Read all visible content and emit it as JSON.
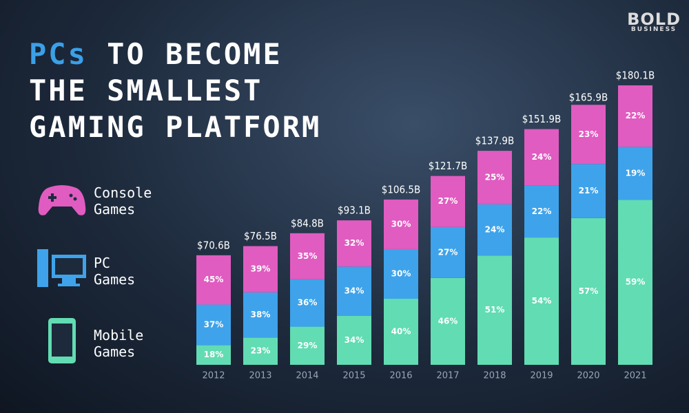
{
  "chart_data": {
    "type": "bar",
    "title_highlight": "PCs",
    "title_lines": [
      "TO BECOME",
      "THE SMALLEST",
      "GAMING PLATFORM"
    ],
    "logo": "BOLD",
    "logo_sub": "BUSINESS",
    "categories": [
      "2012",
      "2013",
      "2014",
      "2015",
      "2016",
      "2017",
      "2018",
      "2019",
      "2020",
      "2021"
    ],
    "totals": [
      70.6,
      76.5,
      84.8,
      93.1,
      106.5,
      121.7,
      137.9,
      151.9,
      165.9,
      180.1
    ],
    "total_labels": [
      "$70.6B",
      "$76.5B",
      "$84.8B",
      "$93.1B",
      "$106.5B",
      "$121.7B",
      "$137.9B",
      "$151.9B",
      "$165.9B",
      "$180.1B"
    ],
    "ylim": [
      0,
      180.1
    ],
    "series": [
      {
        "name": "Mobile Games",
        "color": "#62dcb2",
        "values": [
          18,
          23,
          29,
          34,
          40,
          46,
          51,
          54,
          57,
          59
        ],
        "value_labels": [
          "18%",
          "23%",
          "29%",
          "34%",
          "40%",
          "46%",
          "51%",
          "54%",
          "57%",
          "59%"
        ]
      },
      {
        "name": "PC Games",
        "color": "#3ea3ea",
        "values": [
          37,
          38,
          36,
          34,
          30,
          27,
          24,
          22,
          21,
          19
        ],
        "value_labels": [
          "37%",
          "38%",
          "36%",
          "34%",
          "30%",
          "27%",
          "24%",
          "22%",
          "21%",
          "19%"
        ]
      },
      {
        "name": "Console Games",
        "color": "#e05cc0",
        "values": [
          45,
          39,
          35,
          32,
          30,
          27,
          25,
          24,
          23,
          22
        ],
        "value_labels": [
          "45%",
          "39%",
          "35%",
          "32%",
          "30%",
          "27%",
          "25%",
          "24%",
          "23%",
          "22%"
        ]
      }
    ]
  }
}
